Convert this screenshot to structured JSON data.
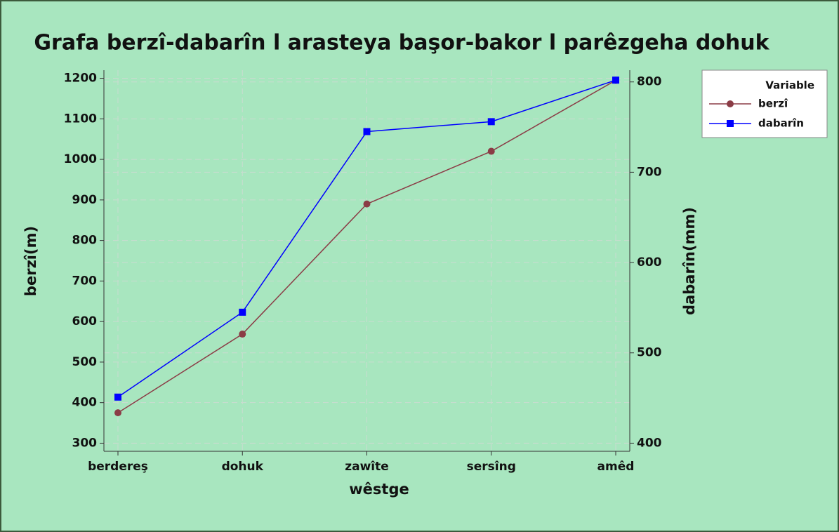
{
  "chart_data": {
    "type": "line",
    "title": "Grafa berzî-dabarîn l arasteya başor-bakor l parêzgeha dohuk",
    "xlabel": "wêstge",
    "ylabel": "berzî(m)",
    "y2label": "dabarîn(mm)",
    "categories": [
      "berdereş",
      "dohuk",
      "zawîte",
      "sersîng",
      "amêd"
    ],
    "series": [
      {
        "name": "berzî",
        "color": "#8b3c46",
        "marker": "circle",
        "values": [
          375,
          569,
          890,
          1020,
          1195
        ]
      },
      {
        "name": "dabarîn",
        "color": "#0000ff",
        "marker": "square",
        "axis": "y2",
        "values": [
          451,
          545,
          745,
          756,
          802
        ]
      }
    ],
    "ylim": [
      280,
      1220
    ],
    "yticks": [
      300,
      400,
      500,
      600,
      700,
      800,
      900,
      1000,
      1100,
      1200
    ],
    "y2lim": [
      391,
      813
    ],
    "y2ticks": [
      400,
      500,
      600,
      700,
      800
    ],
    "grid": true,
    "legend_title": "Variable",
    "legend": "right"
  }
}
